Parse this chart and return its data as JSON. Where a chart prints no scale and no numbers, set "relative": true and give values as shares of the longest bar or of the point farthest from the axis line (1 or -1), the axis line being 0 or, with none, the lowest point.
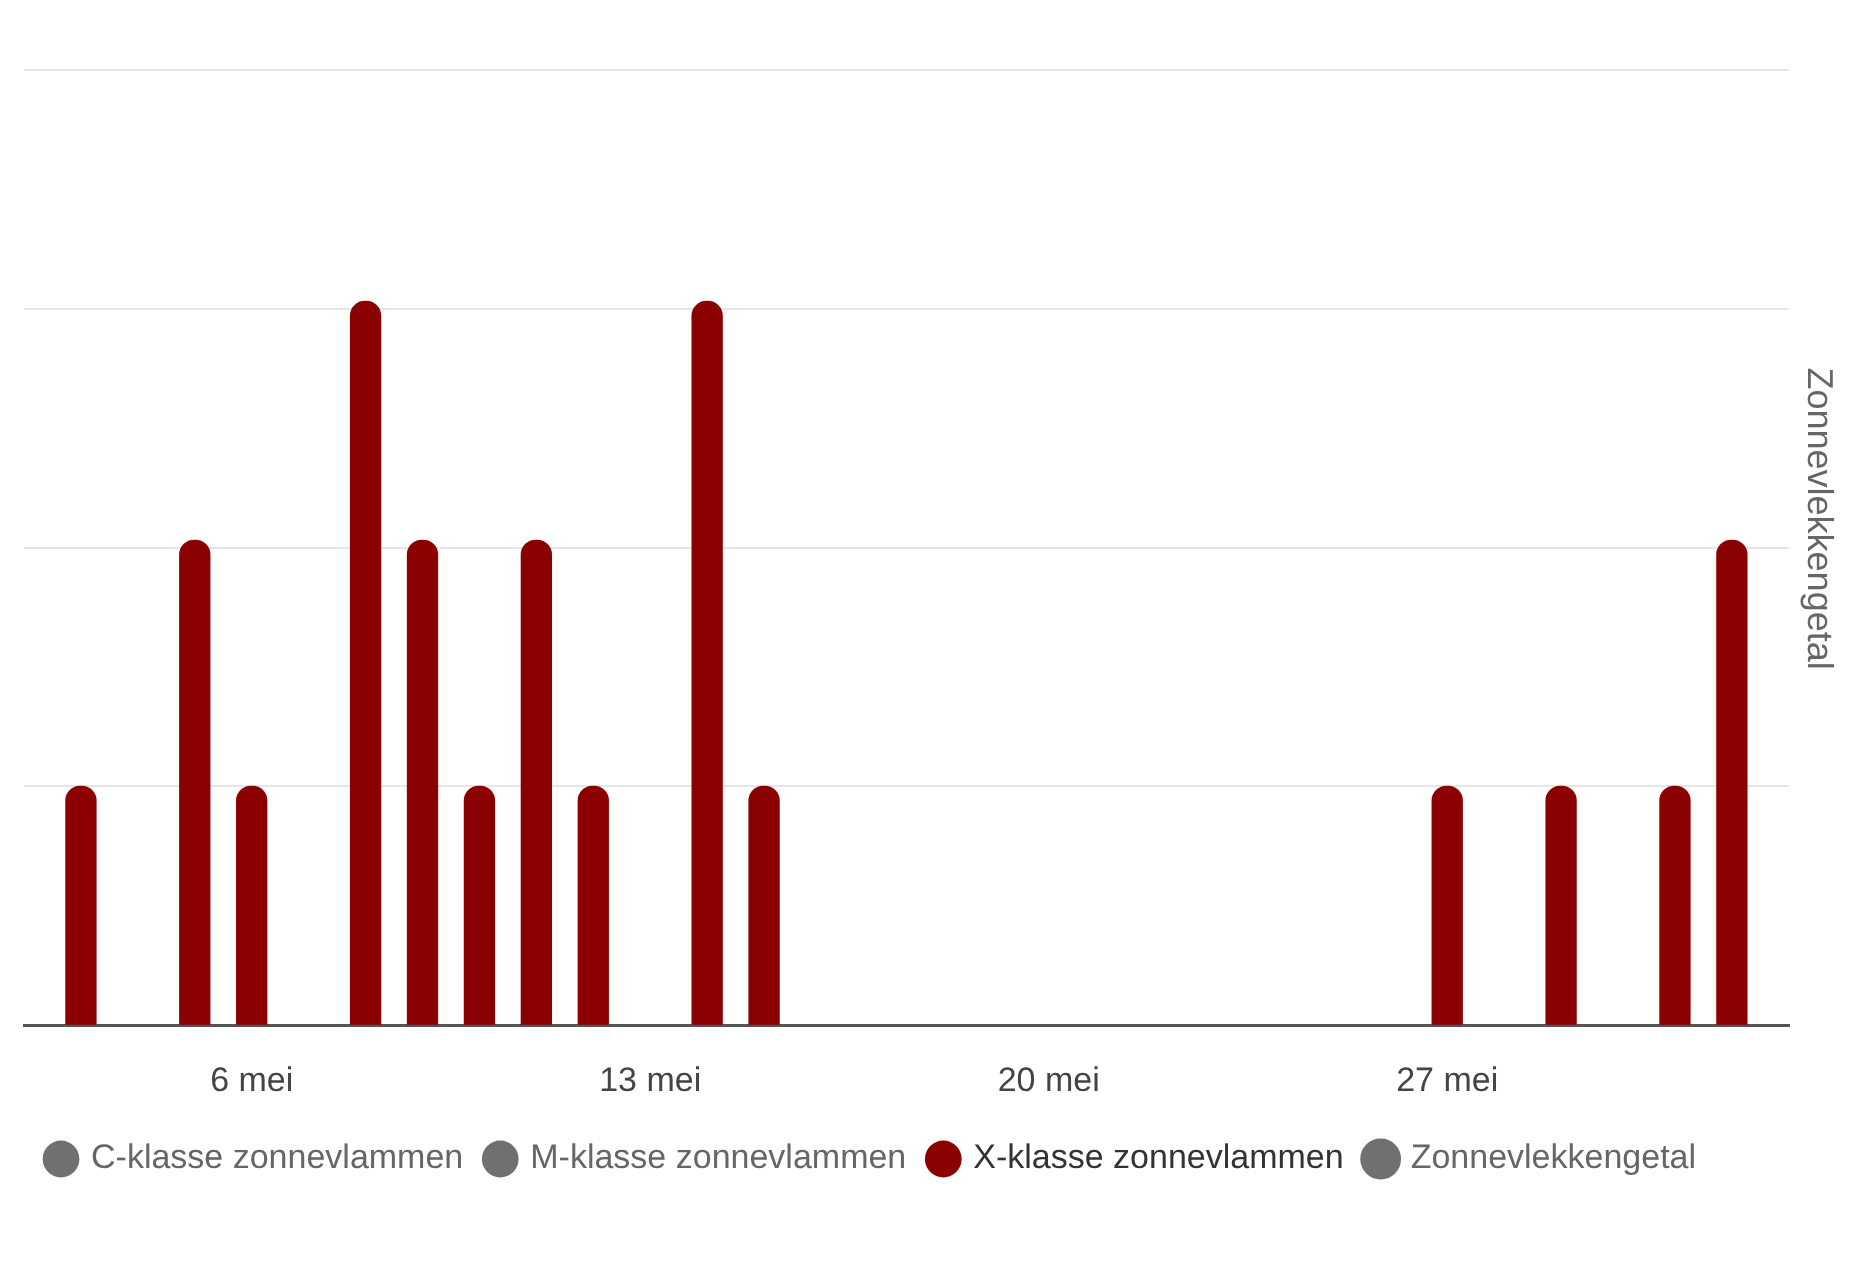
{
  "chart_data": {
    "type": "bar",
    "relative": true,
    "y2label": "Zonnevlekkengetal",
    "grid": "y",
    "legend": "bottom left",
    "x": [
      "--05-03",
      "--05-05",
      "--05-06",
      "--05-08",
      "--05-09",
      "--05-10",
      "--05-11",
      "--05-12",
      "--05-14",
      "--05-15",
      "--05-27",
      "--05-29",
      "--05-31",
      "--06-01"
    ],
    "xlim": [
      "--05-02",
      "--06-02"
    ],
    "xticks": [
      {
        "value": "--05-06",
        "label": "6 mei"
      },
      {
        "value": "--05-13",
        "label": "13 mei"
      },
      {
        "value": "--05-20",
        "label": "20 mei"
      },
      {
        "value": "--05-27",
        "label": "27 mei"
      }
    ],
    "series": [
      {
        "name": "C-klasse zonnevlammen",
        "color": "#707070",
        "values": [
          null,
          null,
          null,
          null,
          null,
          null,
          null,
          null,
          null,
          null,
          null,
          null,
          null,
          null
        ]
      },
      {
        "name": "M-klasse zonnevlammen",
        "color": "#707070",
        "values": [
          null,
          null,
          null,
          null,
          null,
          null,
          null,
          null,
          null,
          null,
          null,
          null,
          null,
          null
        ]
      },
      {
        "name": "X-klasse zonnevlammen",
        "color": "#8b0000",
        "values": [
          0.33,
          0.67,
          0.33,
          1,
          0.67,
          0.33,
          0.67,
          0.33,
          1,
          0.33,
          0.33,
          0.33,
          0.33,
          0.67
        ]
      },
      {
        "name": "Zonnevlekkengetal",
        "type": "line",
        "axis": "y2",
        "color": "#707070",
        "values": [
          null,
          null,
          null,
          null,
          null,
          null,
          null,
          null,
          null,
          null,
          null,
          null,
          null,
          null
        ]
      }
    ]
  }
}
